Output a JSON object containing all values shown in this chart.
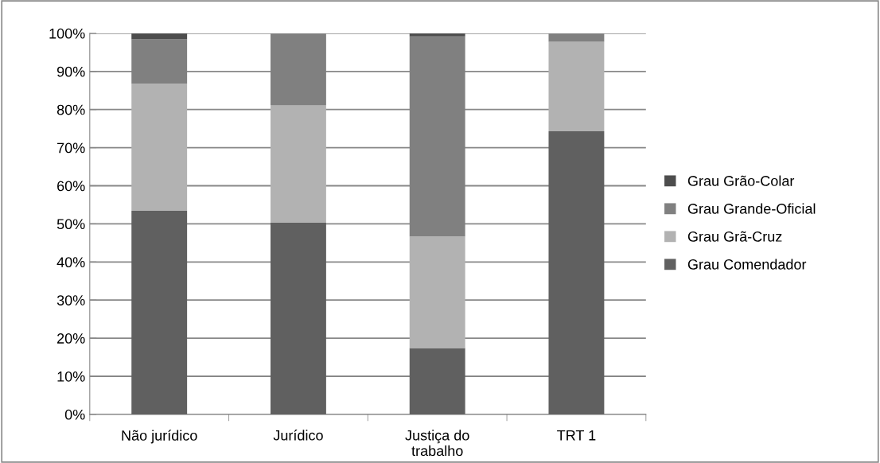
{
  "chart_data": {
    "type": "bar",
    "stacked": true,
    "categories": [
      "Não jurídico",
      "Jurídico",
      "Justiça do\ntrabalho",
      "TRT 1"
    ],
    "series": [
      {
        "name": "Grau Comendador",
        "color": "#606060",
        "values": [
          53.4,
          50.3,
          17.4,
          74.3
        ]
      },
      {
        "name": "Grau Grã-Cruz",
        "color": "#b2b2b2",
        "values": [
          33.4,
          30.8,
          29.3,
          23.5
        ]
      },
      {
        "name": "Grau Grande-Oficial",
        "color": "#808080",
        "values": [
          11.6,
          18.9,
          52.5,
          2.2
        ]
      },
      {
        "name": "Grau Grão-Colar",
        "color": "#4d4d4d",
        "values": [
          1.6,
          0,
          0.8,
          0
        ]
      }
    ],
    "ylim": [
      0,
      100
    ],
    "yticks": [
      {
        "value": 0,
        "label": "0%"
      },
      {
        "value": 10,
        "label": "10%"
      },
      {
        "value": 20,
        "label": "20%"
      },
      {
        "value": 30,
        "label": "30%"
      },
      {
        "value": 40,
        "label": "40%"
      },
      {
        "value": 50,
        "label": "50%"
      },
      {
        "value": 60,
        "label": "60%"
      },
      {
        "value": 70,
        "label": "70%"
      },
      {
        "value": 80,
        "label": "80%"
      },
      {
        "value": 90,
        "label": "90%"
      },
      {
        "value": 100,
        "label": "100%"
      }
    ],
    "grid": "y",
    "legend": "right"
  }
}
